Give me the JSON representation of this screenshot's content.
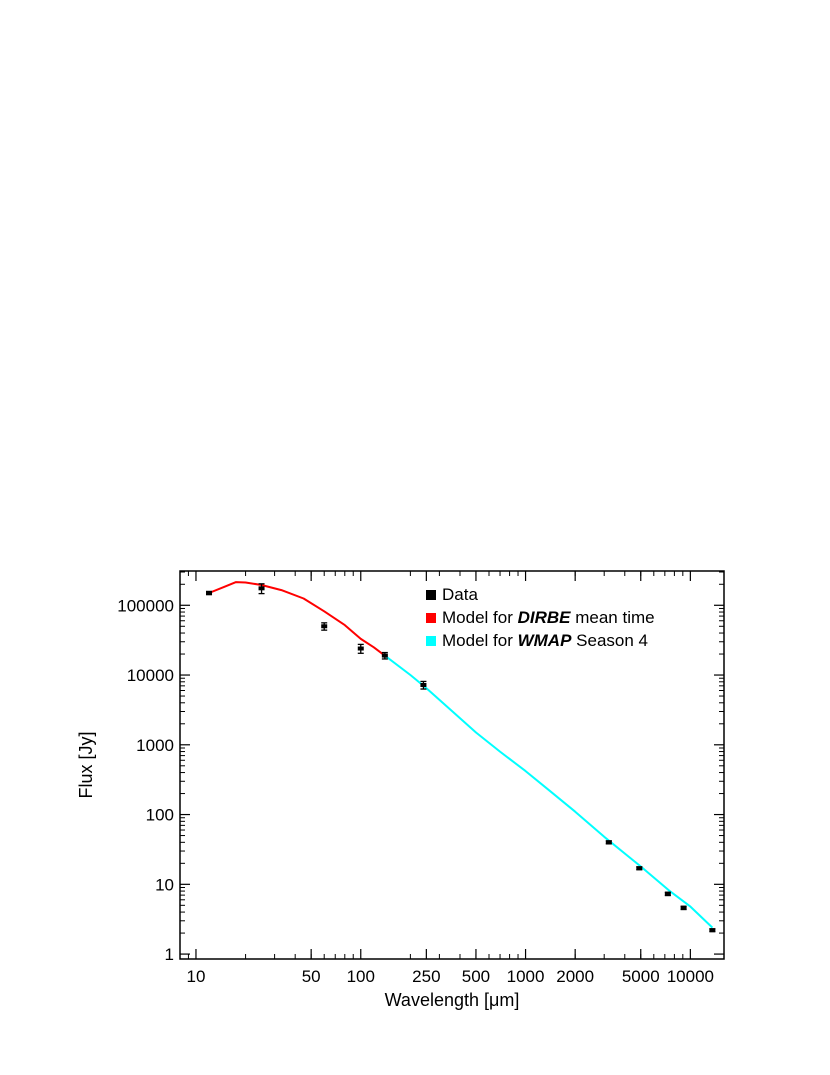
{
  "chart_data": {
    "type": "line",
    "xlabel": "Wavelength [μm]",
    "ylabel": "Flux [Jy]",
    "x_scale": "log",
    "y_scale": "log",
    "xlim": [
      8,
      16000
    ],
    "ylim": [
      0.85,
      310000
    ],
    "grid": false,
    "legend_position": "top-right",
    "x_ticks": [
      {
        "value": 10,
        "label": "10"
      },
      {
        "value": 50,
        "label": "50"
      },
      {
        "value": 100,
        "label": "100"
      },
      {
        "value": 250,
        "label": "250"
      },
      {
        "value": 500,
        "label": "500"
      },
      {
        "value": 1000,
        "label": "1000"
      },
      {
        "value": 2000,
        "label": "2000"
      },
      {
        "value": 5000,
        "label": "5000"
      },
      {
        "value": 10000,
        "label": "10000"
      }
    ],
    "y_ticks": [
      {
        "value": 1,
        "label": "1"
      },
      {
        "value": 10,
        "label": "10"
      },
      {
        "value": 100,
        "label": "100"
      },
      {
        "value": 1000,
        "label": "1000"
      },
      {
        "value": 10000,
        "label": "10000"
      },
      {
        "value": 100000,
        "label": "100000"
      }
    ],
    "legend": [
      {
        "prefix": "Data",
        "emph": "",
        "suffix": "",
        "color": "#000000"
      },
      {
        "prefix": "Model for ",
        "emph": "DIRBE",
        "suffix": " mean time",
        "color": "#ff0000"
      },
      {
        "prefix": "Model for ",
        "emph": "WMAP",
        "suffix": " Season 4",
        "color": "#00ffff"
      }
    ],
    "series": [
      {
        "kind": "points",
        "color": "#000000",
        "points": [
          {
            "x": 12,
            "y": 150000,
            "yerr": 8000
          },
          {
            "x": 25,
            "y": 175000,
            "yerr": 28000
          },
          {
            "x": 60,
            "y": 50000,
            "yerr": 6000
          },
          {
            "x": 100,
            "y": 24000,
            "yerr": 3500
          },
          {
            "x": 140,
            "y": 19000,
            "yerr": 2000
          },
          {
            "x": 240,
            "y": 7200,
            "yerr": 900
          },
          {
            "x": 3200,
            "y": 40,
            "yerr": 2
          },
          {
            "x": 4900,
            "y": 17,
            "yerr": 0.8
          },
          {
            "x": 7300,
            "y": 7.3,
            "yerr": 0.4
          },
          {
            "x": 9100,
            "y": 4.6,
            "yerr": 0.25
          },
          {
            "x": 13600,
            "y": 2.2,
            "yerr": 0.1
          }
        ]
      },
      {
        "kind": "line",
        "color": "#ff0000",
        "x": [
          12,
          15,
          17.5,
          20,
          25,
          33,
          45,
          60,
          80,
          100,
          120,
          140
        ],
        "y": [
          150000,
          185000,
          215000,
          212000,
          195000,
          165000,
          125000,
          82000,
          52000,
          33000,
          25000,
          19000
        ]
      },
      {
        "kind": "line",
        "color": "#00ffff",
        "x": [
          140,
          200,
          250,
          350,
          500,
          700,
          1000,
          1400,
          2000,
          3000,
          5000,
          7500,
          10000,
          13600
        ],
        "y": [
          19000,
          10000,
          6500,
          3200,
          1500,
          800,
          420,
          220,
          110,
          48,
          18,
          8,
          4.8,
          2.4
        ]
      }
    ]
  }
}
